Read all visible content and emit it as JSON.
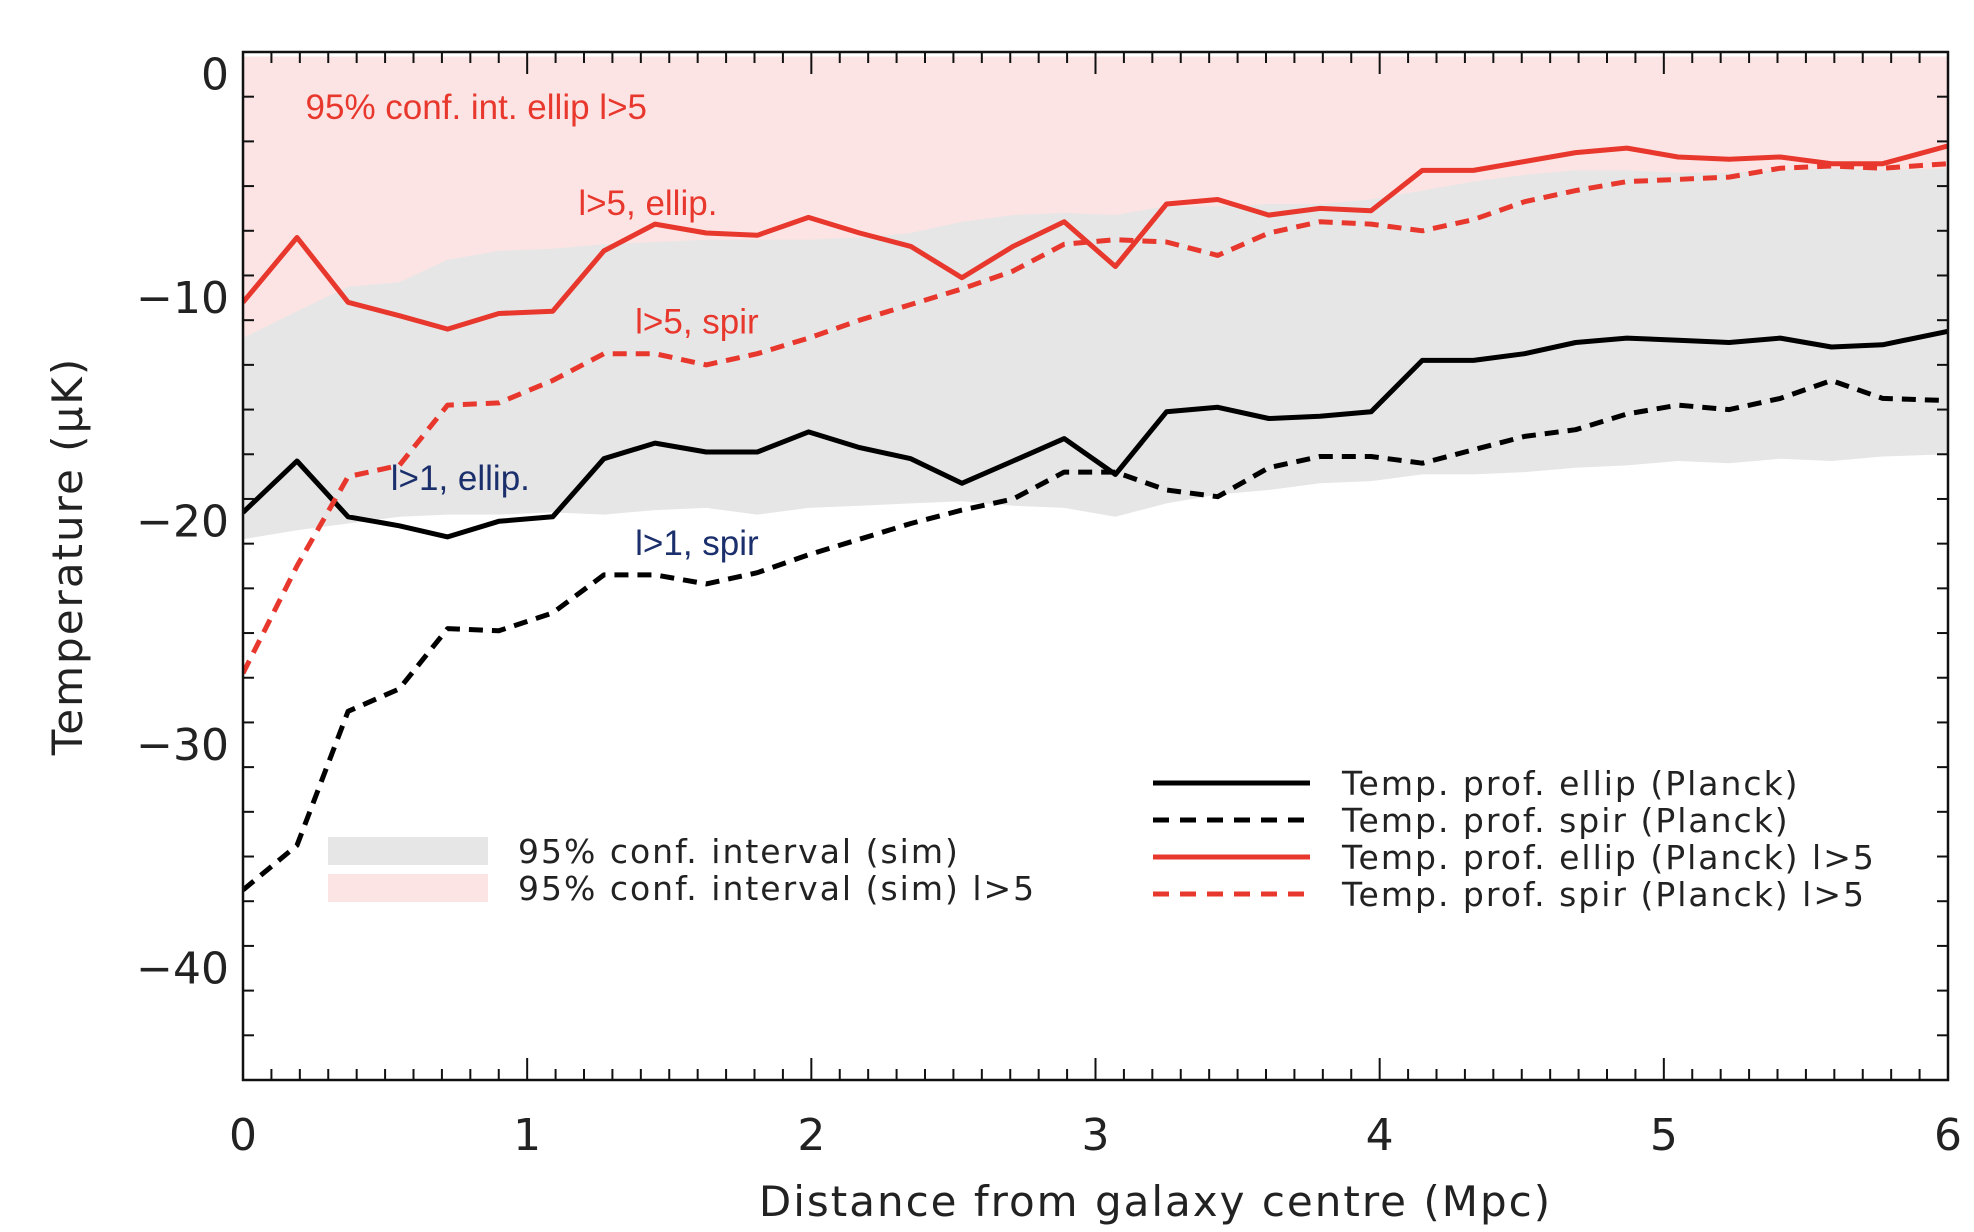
{
  "chart_data": {
    "type": "line",
    "title": "",
    "xlabel": "Distance from galaxy centre (Mpc)",
    "ylabel": "Temperature (μK)",
    "xlim": [
      0,
      6
    ],
    "ylim": [
      -45,
      1
    ],
    "xticks": [
      0,
      1,
      2,
      3,
      4,
      5,
      6
    ],
    "yticks": [
      0,
      -10,
      -20,
      -30,
      -40
    ],
    "grid": false,
    "colors": {
      "black": "#000000",
      "red": "#e8372c",
      "band_grey": "#e6e6e6",
      "band_pink": "#fce4e4",
      "annotation_red": "#e8372c",
      "annotation_blue": "#1a2f6b"
    },
    "x": [
      0,
      0.19,
      0.37,
      0.55,
      0.72,
      0.9,
      1.09,
      1.27,
      1.45,
      1.63,
      1.81,
      1.99,
      2.17,
      2.35,
      2.53,
      2.71,
      2.89,
      3.07,
      3.25,
      3.43,
      3.61,
      3.79,
      3.97,
      4.15,
      4.33,
      4.51,
      4.69,
      4.87,
      5.05,
      5.23,
      5.41,
      5.59,
      5.77,
      6.0
    ],
    "bands": [
      {
        "name": "95% conf. interval (sim) l>5",
        "color": "#fce4e4",
        "lower": [
          -14.5,
          -12.5,
          -11.5,
          -11,
          -10.2,
          -10,
          -9.6,
          -9.4,
          -9.2,
          -9,
          -8.8,
          -8.6,
          -8.4,
          -8.2,
          -8,
          -7.8,
          -7.6,
          -7.4,
          -7.2,
          -7,
          -6.8,
          -6.6,
          -6.4,
          -6.2,
          -6,
          -5.8,
          -5.6,
          -5.4,
          -5.2,
          -5,
          -4.8,
          -4.6,
          -4.4,
          -4.2
        ],
        "upper": [
          0.8,
          0.8,
          0.8,
          0.8,
          0.8,
          0.8,
          0.8,
          0.8,
          0.8,
          0.8,
          0.8,
          0.8,
          0.8,
          0.8,
          0.8,
          0.8,
          0.8,
          0.8,
          0.8,
          0.8,
          0.8,
          0.8,
          0.8,
          0.8,
          0.8,
          0.8,
          0.8,
          0.8,
          0.8,
          0.8,
          0.8,
          0.8,
          0.8,
          0.8
        ]
      },
      {
        "name": "95% conf. interval (sim)",
        "color": "#e6e6e6",
        "lower": [
          -20.8,
          -20.4,
          -20.1,
          -19.8,
          -19.7,
          -19.7,
          -19.6,
          -19.7,
          -19.5,
          -19.4,
          -19.7,
          -19.4,
          -19.3,
          -19.2,
          -19.1,
          -19.3,
          -19.4,
          -19.8,
          -19.2,
          -18.8,
          -18.6,
          -18.3,
          -18.2,
          -17.9,
          -17.9,
          -17.8,
          -17.6,
          -17.5,
          -17.3,
          -17.4,
          -17.2,
          -17.3,
          -17.1,
          -17.0
        ],
        "upper": [
          -11.8,
          -10.6,
          -9.5,
          -9.3,
          -8.3,
          -7.9,
          -7.8,
          -7.6,
          -7.5,
          -7.4,
          -7.4,
          -7.4,
          -7.3,
          -7.1,
          -6.6,
          -6.3,
          -6.2,
          -6.3,
          -5.9,
          -5.9,
          -5.8,
          -5.8,
          -5.6,
          -5.2,
          -4.8,
          -4.5,
          -4.3,
          -4.3,
          -4.4,
          -4.4,
          -4.3,
          -4.2,
          -4.3,
          -4.2
        ]
      }
    ],
    "series": [
      {
        "name": "Temp. prof. ellip (Planck)",
        "color": "#000000",
        "dashed": false,
        "values": [
          -19.6,
          -17.3,
          -19.8,
          -20.2,
          -20.7,
          -20.0,
          -19.8,
          -17.2,
          -16.5,
          -16.9,
          -16.9,
          -16.0,
          -16.7,
          -17.2,
          -18.3,
          -17.3,
          -16.3,
          -17.9,
          -15.1,
          -14.9,
          -15.4,
          -15.3,
          -15.1,
          -12.8,
          -12.8,
          -12.5,
          -12.0,
          -11.8,
          -11.9,
          -12.0,
          -11.8,
          -12.2,
          -12.1,
          -11.5
        ]
      },
      {
        "name": "Temp. prof. spir (Planck)",
        "color": "#000000",
        "dashed": true,
        "values": [
          -36.5,
          -34.5,
          -28.5,
          -27.5,
          -24.8,
          -24.9,
          -24.1,
          -22.4,
          -22.4,
          -22.8,
          -22.3,
          -21.5,
          -20.8,
          -20.1,
          -19.5,
          -19.0,
          -17.8,
          -17.8,
          -18.6,
          -18.9,
          -17.6,
          -17.1,
          -17.1,
          -17.4,
          -16.8,
          -16.2,
          -15.9,
          -15.2,
          -14.8,
          -15.0,
          -14.5,
          -13.7,
          -14.5,
          -14.6
        ]
      },
      {
        "name": "Temp. prof. ellip (Planck) l>5",
        "color": "#e8372c",
        "dashed": false,
        "values": [
          -10.2,
          -7.3,
          -10.2,
          -10.8,
          -11.4,
          -10.7,
          -10.6,
          -7.9,
          -6.7,
          -7.1,
          -7.2,
          -6.4,
          -7.1,
          -7.7,
          -9.1,
          -7.7,
          -6.6,
          -8.6,
          -5.8,
          -5.6,
          -6.3,
          -6.0,
          -6.1,
          -4.3,
          -4.3,
          -3.9,
          -3.5,
          -3.3,
          -3.7,
          -3.8,
          -3.7,
          -4.0,
          -4.0,
          -3.2
        ]
      },
      {
        "name": "Temp. prof. spir (Planck) l>5",
        "color": "#e8372c",
        "dashed": true,
        "values": [
          -26.8,
          -22.0,
          -18.0,
          -17.5,
          -14.8,
          -14.7,
          -13.7,
          -12.5,
          -12.5,
          -13.0,
          -12.5,
          -11.8,
          -11.0,
          -10.3,
          -9.6,
          -8.8,
          -7.6,
          -7.4,
          -7.5,
          -8.1,
          -7.1,
          -6.6,
          -6.7,
          -7.0,
          -6.5,
          -5.7,
          -5.2,
          -4.8,
          -4.7,
          -4.6,
          -4.2,
          -4.1,
          -4.2,
          -4.0
        ]
      }
    ],
    "legend_left": [
      {
        "label": "95% conf. interval (sim)",
        "color": "#e6e6e6"
      },
      {
        "label": "95% conf. interval (sim) l>5",
        "color": "#fce4e4"
      }
    ],
    "legend_right": [
      {
        "label": "Temp. prof. ellip (Planck)",
        "color": "#000000",
        "dashed": false
      },
      {
        "label": "Temp. prof. spir (Planck)",
        "color": "#000000",
        "dashed": true
      },
      {
        "label": "Temp. prof. ellip (Planck) l>5",
        "color": "#e8372c",
        "dashed": false
      },
      {
        "label": "Temp. prof. spir (Planck) l>5",
        "color": "#e8372c",
        "dashed": true
      }
    ],
    "annotations": [
      {
        "text": "95% conf. int. ellip l>5",
        "x": 0.22,
        "y": -2.0,
        "color": "#e8372c"
      },
      {
        "text": "l>5, ellip.",
        "x": 1.18,
        "y": -6.3,
        "color": "#e8372c"
      },
      {
        "text": "l>5, spir",
        "x": 1.38,
        "y": -11.6,
        "color": "#e8372c"
      },
      {
        "text": "l>1, ellip.",
        "x": 0.52,
        "y": -18.6,
        "color": "#1a2f6b"
      },
      {
        "text": "l>1, spir",
        "x": 1.38,
        "y": -21.5,
        "color": "#1a2f6b"
      }
    ]
  }
}
